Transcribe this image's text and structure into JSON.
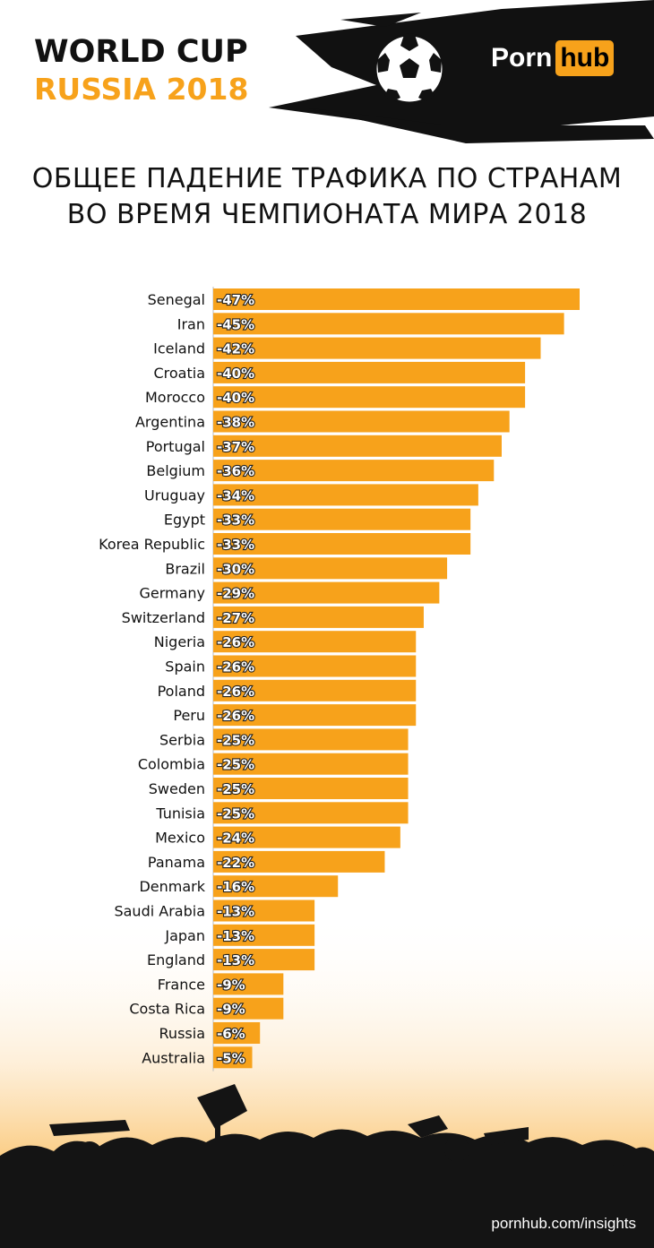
{
  "header": {
    "event_line1": "WORLD CUP",
    "event_line2": "RUSSIA 2018",
    "logo_part1": "Porn",
    "logo_part2": "hub"
  },
  "title_lines": [
    "ОБЩЕЕ ПАДЕНИЕ ТРАФИКА ПО СТРАНАМ",
    "ВО ВРЕМЯ ЧЕМПИОНАТА МИРА 2018"
  ],
  "footer": {
    "url": "pornhub.com/insights"
  },
  "colors": {
    "bar": "#f7a21b",
    "text": "#111111",
    "accent": "#f7a21b"
  },
  "icons": [
    "soccer-ball-icon",
    "crowd-silhouette"
  ],
  "chart_data": {
    "type": "bar",
    "orientation": "horizontal",
    "title": "ОБЩЕЕ ПАДЕНИЕ ТРАФИКА ПО СТРАНАМ ВО ВРЕМЯ ЧЕМПИОНАТА МИРА 2018",
    "xlabel": "",
    "ylabel": "",
    "unit": "%",
    "xlim": [
      -47,
      0
    ],
    "categories": [
      "Senegal",
      "Iran",
      "Iceland",
      "Croatia",
      "Morocco",
      "Argentina",
      "Portugal",
      "Belgium",
      "Uruguay",
      "Egypt",
      "Korea Republic",
      "Brazil",
      "Germany",
      "Switzerland",
      "Nigeria",
      "Spain",
      "Poland",
      "Peru",
      "Serbia",
      "Colombia",
      "Sweden",
      "Tunisia",
      "Mexico",
      "Panama",
      "Denmark",
      "Saudi Arabia",
      "Japan",
      "England",
      "France",
      "Costa Rica",
      "Russia",
      "Australia"
    ],
    "values": [
      -47,
      -45,
      -42,
      -40,
      -40,
      -38,
      -37,
      -36,
      -34,
      -33,
      -33,
      -30,
      -29,
      -27,
      -26,
      -26,
      -26,
      -26,
      -25,
      -25,
      -25,
      -25,
      -24,
      -22,
      -16,
      -13,
      -13,
      -13,
      -9,
      -9,
      -6,
      -5
    ],
    "data_labels": [
      "-47%",
      "-45%",
      "-42%",
      "-40%",
      "-40%",
      "-38%",
      "-37%",
      "-36%",
      "-34%",
      "-33%",
      "-33%",
      "-30%",
      "-29%",
      "-27%",
      "-26%",
      "-26%",
      "-26%",
      "-26%",
      "-25%",
      "-25%",
      "-25%",
      "-25%",
      "-24%",
      "-22%",
      "-16%",
      "-13%",
      "-13%",
      "-13%",
      "-9%",
      "-9%",
      "-6%",
      "-5%"
    ],
    "grid": false,
    "legend": "none"
  }
}
